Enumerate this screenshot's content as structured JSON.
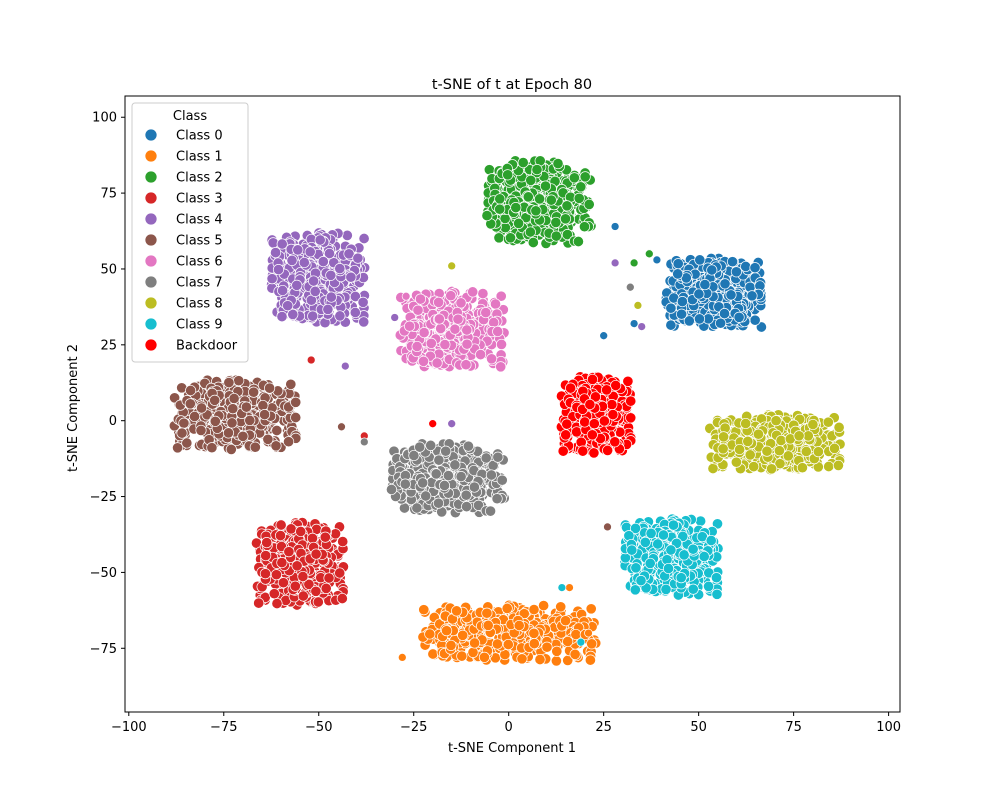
{
  "chart_data": {
    "type": "scatter",
    "title": "t-SNE of t at Epoch 80",
    "xlabel": "t-SNE Component 1",
    "ylabel": "t-SNE Component 2",
    "xlim": [
      -101,
      103
    ],
    "ylim": [
      -96,
      107
    ],
    "xticks": [
      -100,
      -75,
      -50,
      -25,
      0,
      25,
      50,
      75,
      100
    ],
    "xtick_labels": [
      "−100",
      "−75",
      "−50",
      "−25",
      "0",
      "25",
      "50",
      "75",
      "100"
    ],
    "yticks": [
      -75,
      -50,
      -25,
      0,
      25,
      50,
      75,
      100
    ],
    "ytick_labels": [
      "−75",
      "−50",
      "−25",
      "0",
      "25",
      "50",
      "75",
      "100"
    ],
    "grid": false,
    "legend": {
      "title": "Class",
      "placement": "top-left"
    },
    "series": [
      {
        "name": "Class 0",
        "color": "#1f77b4",
        "center": [
          54,
          42
        ],
        "spread": [
          11,
          10
        ],
        "points": [
          [
            25,
            28
          ],
          [
            28,
            64
          ],
          [
            33,
            32
          ],
          [
            39,
            53
          ]
        ]
      },
      {
        "name": "Class 1",
        "color": "#ff7f0e",
        "center": [
          0,
          -70
        ],
        "spread": [
          20,
          8
        ],
        "points": [
          [
            -28,
            -78
          ],
          [
            21,
            -70
          ],
          [
            16,
            -55
          ]
        ]
      },
      {
        "name": "Class 2",
        "color": "#2ca02c",
        "center": [
          8,
          72
        ],
        "spread": [
          12,
          12
        ],
        "points": [
          [
            33,
            52
          ],
          [
            37,
            55
          ],
          [
            -40,
            36
          ]
        ]
      },
      {
        "name": "Class 3",
        "color": "#d62728",
        "center": [
          -55,
          -47
        ],
        "spread": [
          10,
          12
        ],
        "points": [
          [
            -52,
            20
          ],
          [
            -38,
            -5
          ]
        ]
      },
      {
        "name": "Class 4",
        "color": "#9467bd",
        "center": [
          -50,
          47
        ],
        "spread": [
          11,
          13
        ],
        "points": [
          [
            -30,
            34
          ],
          [
            28,
            52
          ],
          [
            35,
            31
          ],
          [
            -15,
            -1
          ],
          [
            -43,
            18
          ]
        ]
      },
      {
        "name": "Class 5",
        "color": "#8c564b",
        "center": [
          -72,
          2
        ],
        "spread": [
          14,
          10
        ],
        "points": [
          [
            26,
            -35
          ],
          [
            -44,
            -2
          ]
        ]
      },
      {
        "name": "Class 6",
        "color": "#e377c2",
        "center": [
          -15,
          30
        ],
        "spread": [
          12,
          11
        ],
        "points": [
          [
            -27,
            41
          ]
        ]
      },
      {
        "name": "Class 7",
        "color": "#7f7f7f",
        "center": [
          -16,
          -19
        ],
        "spread": [
          13,
          10
        ],
        "points": [
          [
            32,
            44
          ],
          [
            -38,
            -7
          ]
        ]
      },
      {
        "name": "Class 8",
        "color": "#bcbd22",
        "center": [
          70,
          -7
        ],
        "spread": [
          15,
          8
        ],
        "points": [
          [
            -15,
            51
          ],
          [
            34,
            38
          ]
        ]
      },
      {
        "name": "Class 9",
        "color": "#17becf",
        "center": [
          43,
          -45
        ],
        "spread": [
          11,
          11
        ],
        "points": [
          [
            19,
            -73
          ],
          [
            14,
            -55
          ]
        ]
      },
      {
        "name": "Backdoor",
        "color": "#ff0000",
        "center": [
          23,
          2
        ],
        "spread": [
          8,
          11
        ],
        "points": [
          [
            -20,
            -1
          ]
        ]
      }
    ]
  }
}
